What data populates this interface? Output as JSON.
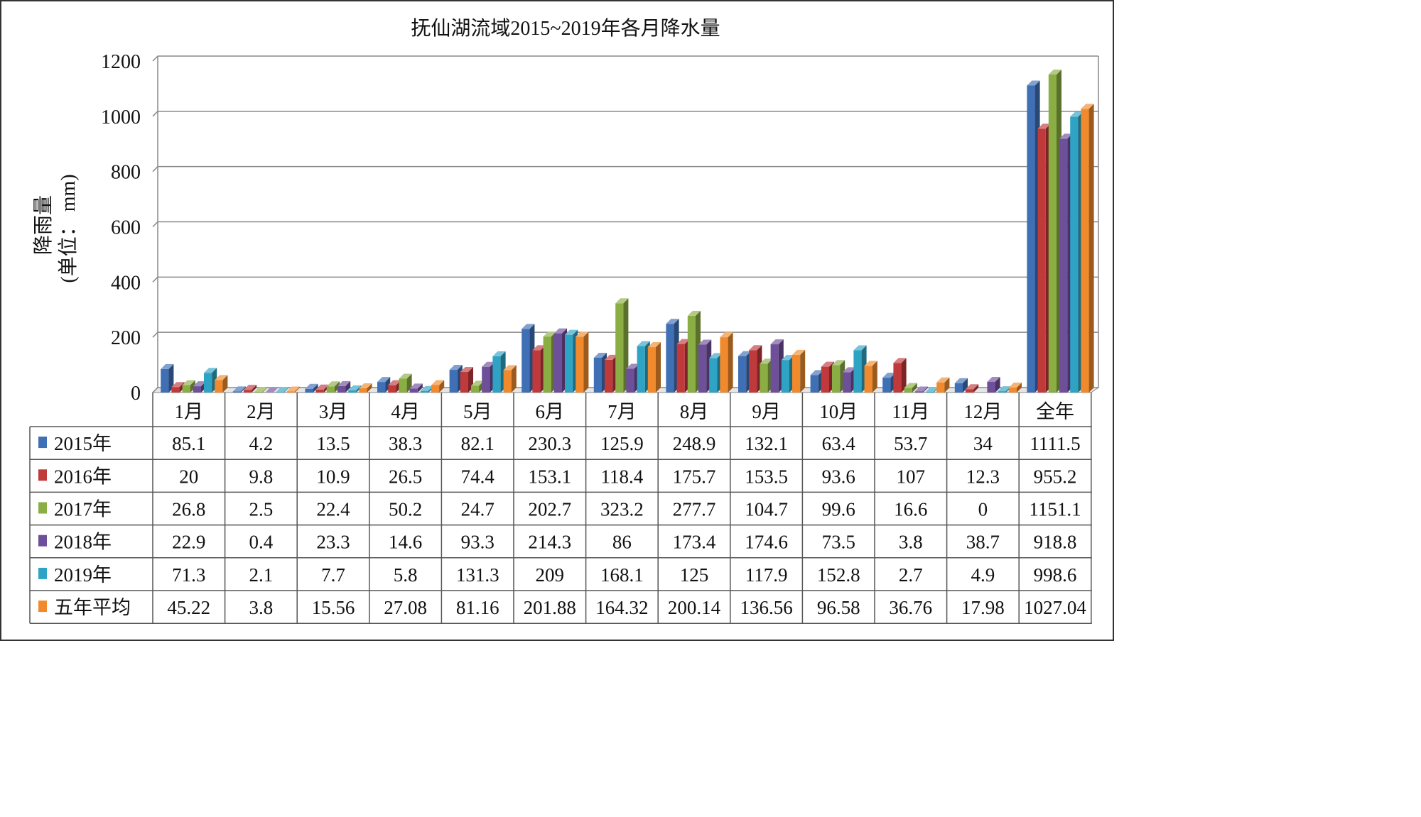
{
  "chart_data": {
    "type": "bar",
    "title": "抚仙湖流域2015~2019年各月降水量",
    "ylabel_line1": "降雨量",
    "ylabel_line2": "(单位： mm)",
    "ylim": [
      0,
      1200
    ],
    "yticks": [
      "0",
      "200",
      "400",
      "600",
      "800",
      "1000",
      "1200"
    ],
    "grid": true,
    "categories": [
      "1月",
      "2月",
      "3月",
      "4月",
      "5月",
      "6月",
      "7月",
      "8月",
      "9月",
      "10月",
      "11月",
      "12月",
      "全年"
    ],
    "series": [
      {
        "name": "2015年",
        "color": "#3F6FB5",
        "values": [
          85.1,
          4.2,
          13.5,
          38.3,
          82.1,
          230.3,
          125.9,
          248.9,
          132.1,
          63.4,
          53.7,
          34,
          1111.5
        ],
        "labels": [
          "85.1",
          "4.2",
          "13.5",
          "38.3",
          "82.1",
          "230.3",
          "125.9",
          "248.9",
          "132.1",
          "63.4",
          "53.7",
          "34",
          "1111.5"
        ]
      },
      {
        "name": "2016年",
        "color": "#C0393B",
        "values": [
          20,
          9.8,
          10.9,
          26.5,
          74.4,
          153.1,
          118.4,
          175.7,
          153.5,
          93.6,
          107,
          12.3,
          955.2
        ],
        "labels": [
          "20",
          "9.8",
          "10.9",
          "26.5",
          "74.4",
          "153.1",
          "118.4",
          "175.7",
          "153.5",
          "93.6",
          "107",
          "12.3",
          "955.2"
        ]
      },
      {
        "name": "2017年",
        "color": "#8AAE44",
        "values": [
          26.8,
          2.5,
          22.4,
          50.2,
          24.7,
          202.7,
          323.2,
          277.7,
          104.7,
          99.6,
          16.6,
          0,
          1151.1
        ],
        "labels": [
          "26.8",
          "2.5",
          "22.4",
          "50.2",
          "24.7",
          "202.7",
          "323.2",
          "277.7",
          "104.7",
          "99.6",
          "16.6",
          "0",
          "1151.1"
        ]
      },
      {
        "name": "2018年",
        "color": "#6E4F9A",
        "values": [
          22.9,
          0.4,
          23.3,
          14.6,
          93.3,
          214.3,
          86,
          173.4,
          174.6,
          73.5,
          3.8,
          38.7,
          918.8
        ],
        "labels": [
          "22.9",
          "0.4",
          "23.3",
          "14.6",
          "93.3",
          "214.3",
          "86",
          "173.4",
          "174.6",
          "73.5",
          "3.8",
          "38.7",
          "918.8"
        ]
      },
      {
        "name": "2019年",
        "color": "#2FA3C4",
        "values": [
          71.3,
          2.1,
          7.7,
          5.8,
          131.3,
          209,
          168.1,
          125,
          117.9,
          152.8,
          2.7,
          4.9,
          998.6
        ],
        "labels": [
          "71.3",
          "2.1",
          "7.7",
          "5.8",
          "131.3",
          "209",
          "168.1",
          "125",
          "117.9",
          "152.8",
          "2.7",
          "4.9",
          "998.6"
        ]
      },
      {
        "name": "五年平均",
        "color": "#F08A2C",
        "values": [
          45.22,
          3.8,
          15.56,
          27.08,
          81.16,
          201.88,
          164.32,
          200.14,
          136.56,
          96.58,
          36.76,
          17.98,
          1027.04
        ],
        "labels": [
          "45.22",
          "3.8",
          "15.56",
          "27.08",
          "81.16",
          "201.88",
          "164.32",
          "200.14",
          "136.56",
          "96.58",
          "36.76",
          "17.98",
          "1027.04"
        ]
      }
    ]
  }
}
